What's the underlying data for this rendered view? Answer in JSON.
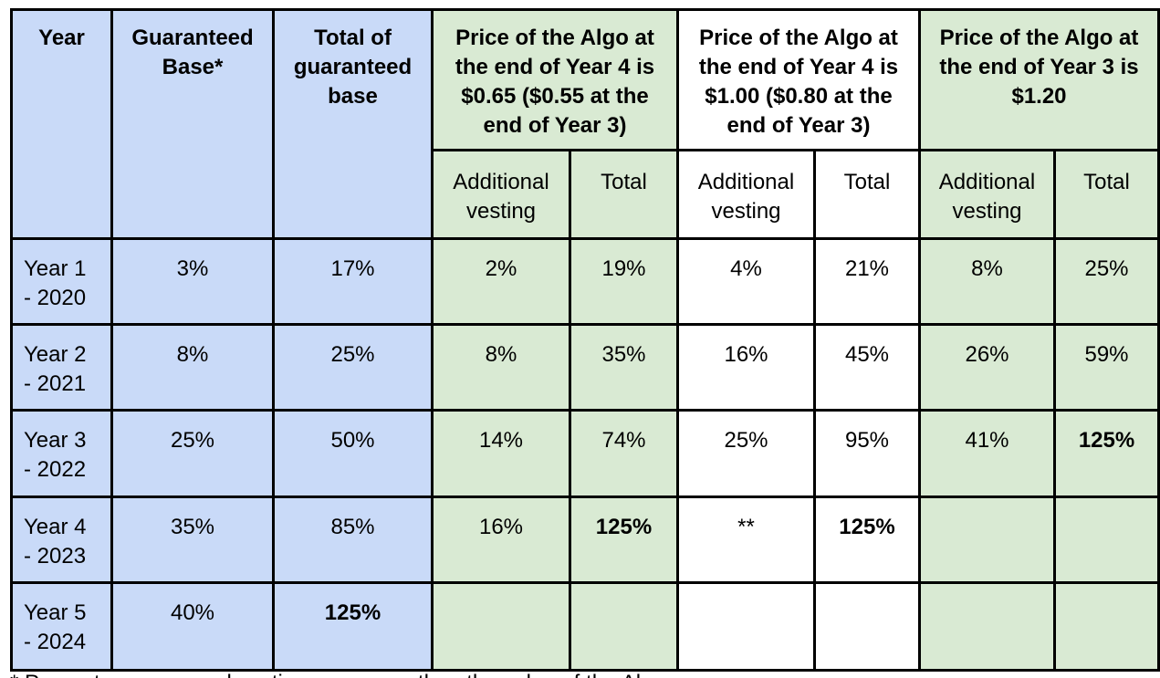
{
  "headers": {
    "year": "Year",
    "guaranteed_base": "Guaranteed Base*",
    "total_guaranteed_base": "Total of guaranteed base",
    "scenario1": "Price of the Algo at the end of Year 4 is $0.65 ($0.55 at the end of Year 3)",
    "scenario2": "Price of the Algo at the end of Year 4 is $1.00 ($0.80 at the end of Year 3)",
    "scenario3": "Price of the Algo at the end of Year 3 is $1.20"
  },
  "subheaders": {
    "additional_vesting": "Additional vesting",
    "total": "Total"
  },
  "rows": [
    {
      "year": "Year 1\n- 2020",
      "base": "3%",
      "total_base": "17%",
      "s1_add": "2%",
      "s1_total": "19%",
      "s2_add": "4%",
      "s2_total": "21%",
      "s3_add": "8%",
      "s3_total": "25%"
    },
    {
      "year": "Year 2\n- 2021",
      "base": "8%",
      "total_base": "25%",
      "s1_add": "8%",
      "s1_total": "35%",
      "s2_add": "16%",
      "s2_total": "45%",
      "s3_add": "26%",
      "s3_total": "59%"
    },
    {
      "year": "Year 3\n- 2022",
      "base": "25%",
      "total_base": "50%",
      "s1_add": "14%",
      "s1_total": "74%",
      "s2_add": "25%",
      "s2_total": "95%",
      "s3_add": "41%",
      "s3_total": "125%"
    },
    {
      "year": "Year 4\n- 2023",
      "base": "35%",
      "total_base": "85%",
      "s1_add": "16%",
      "s1_total": "125%",
      "s2_add": "**",
      "s2_total": "125%",
      "s3_add": "",
      "s3_total": ""
    },
    {
      "year": "Year 5\n- 2024",
      "base": "40%",
      "total_base": "125%",
      "s1_add": "",
      "s1_total": "",
      "s2_add": "",
      "s2_total": "",
      "s3_add": "",
      "s3_total": ""
    }
  ],
  "footnote": "* Percentage assumed vesting ... per month ... the value of the Algo",
  "colors": {
    "blue": "#c9daf8",
    "green": "#d9ead3",
    "white": "#ffffff"
  }
}
